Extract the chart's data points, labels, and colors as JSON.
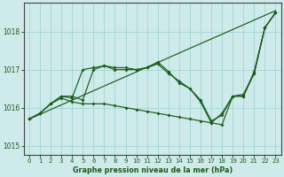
{
  "title": "Graphe pression niveau de la mer (hPa)",
  "bg_color": "#ceeaea",
  "grid_color": "#a8d8d8",
  "line_color": "#1a5c1a",
  "xlim": [
    -0.5,
    23.5
  ],
  "ylim": [
    1014.75,
    1018.75
  ],
  "yticks": [
    1015,
    1016,
    1017,
    1018
  ],
  "xticks": [
    0,
    1,
    2,
    3,
    4,
    5,
    6,
    7,
    8,
    9,
    10,
    11,
    12,
    13,
    14,
    15,
    16,
    17,
    18,
    19,
    20,
    21,
    22,
    23
  ],
  "series": [
    {
      "x": [
        0,
        23
      ],
      "y": [
        1015.7,
        1018.55
      ],
      "style": "-",
      "has_markers": false
    },
    {
      "x": [
        0,
        1,
        2,
        3,
        4,
        5,
        6,
        7,
        8,
        9,
        10,
        11,
        12,
        13,
        14,
        15,
        16,
        17,
        18,
        19,
        20,
        21,
        22,
        23
      ],
      "y": [
        1015.7,
        1015.85,
        1016.1,
        1016.3,
        1016.25,
        1017.0,
        1017.05,
        1017.1,
        1017.0,
        1017.0,
        1017.0,
        1017.05,
        1017.2,
        1016.95,
        1016.65,
        1016.5,
        1016.15,
        1015.6,
        1015.85,
        1016.3,
        1016.35,
        1016.9,
        1018.1,
        1018.5
      ],
      "style": "-",
      "has_markers": true
    },
    {
      "x": [
        0,
        1,
        2,
        3,
        4,
        5,
        6,
        7,
        8,
        9,
        10,
        11,
        12,
        13,
        14,
        15,
        16,
        17,
        18,
        19,
        20,
        21,
        22,
        23
      ],
      "y": [
        1015.7,
        1015.85,
        1016.1,
        1016.3,
        1016.3,
        1016.2,
        1017.0,
        1017.1,
        1017.05,
        1017.05,
        1017.0,
        1017.05,
        1017.15,
        1016.9,
        1016.7,
        1016.5,
        1016.2,
        1015.65,
        1015.8,
        1016.3,
        1016.3,
        1016.95,
        1018.1,
        1018.5
      ],
      "style": "-",
      "has_markers": true
    },
    {
      "x": [
        0,
        1,
        2,
        3,
        4,
        5,
        6,
        7,
        8,
        9,
        10,
        11,
        12,
        13,
        14,
        15,
        16,
        17,
        18,
        19,
        20,
        21,
        22,
        23
      ],
      "y": [
        1015.7,
        1015.85,
        1016.1,
        1016.25,
        1016.15,
        1016.1,
        1016.1,
        1016.1,
        1016.05,
        1016.0,
        1015.95,
        1015.9,
        1015.85,
        1015.8,
        1015.75,
        1015.7,
        1015.65,
        1015.6,
        1015.55,
        1016.3,
        1016.3,
        1016.9,
        1018.1,
        1018.5
      ],
      "style": "-",
      "has_markers": true
    }
  ]
}
